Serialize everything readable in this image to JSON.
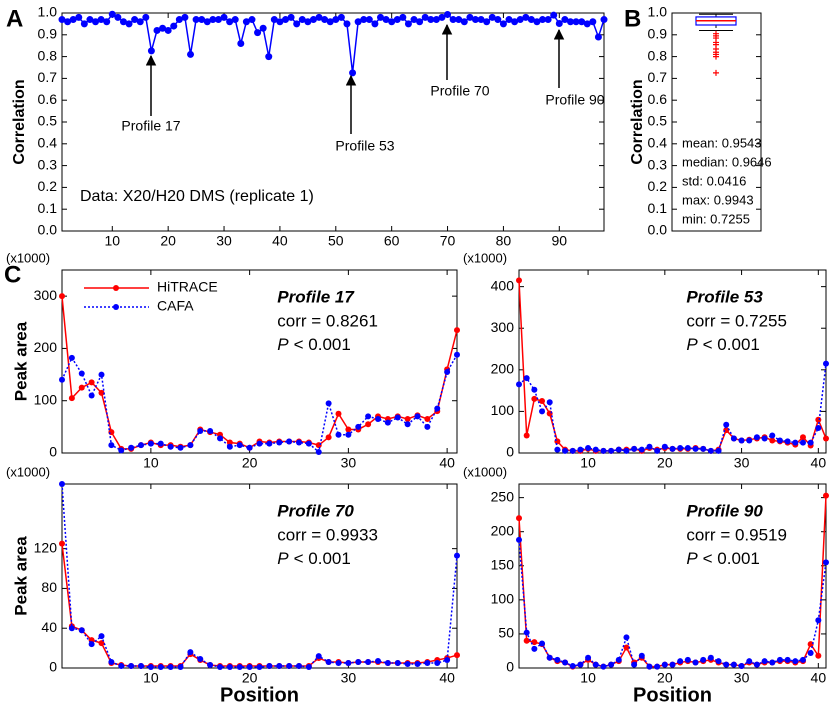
{
  "panel_labels": [
    "A",
    "B",
    "C"
  ],
  "chart_data": [
    {
      "type": "line",
      "y_label": "Correlation",
      "color": "#0000ff",
      "x": [
        1,
        2,
        3,
        4,
        5,
        6,
        7,
        8,
        9,
        10,
        11,
        12,
        13,
        14,
        15,
        16,
        17,
        18,
        19,
        20,
        21,
        22,
        23,
        24,
        25,
        26,
        27,
        28,
        29,
        30,
        31,
        32,
        33,
        34,
        35,
        36,
        37,
        38,
        39,
        40,
        41,
        42,
        43,
        44,
        45,
        46,
        47,
        48,
        49,
        50,
        51,
        52,
        53,
        54,
        55,
        56,
        57,
        58,
        59,
        60,
        61,
        62,
        63,
        64,
        65,
        66,
        67,
        68,
        69,
        70,
        71,
        72,
        73,
        74,
        75,
        76,
        77,
        78,
        79,
        80,
        81,
        82,
        83,
        84,
        85,
        86,
        87,
        88,
        89,
        90,
        91,
        92,
        93,
        94,
        95,
        96,
        97,
        98
      ],
      "values": [
        0.97,
        0.96,
        0.97,
        0.98,
        0.95,
        0.97,
        0.96,
        0.97,
        0.96,
        0.9943,
        0.98,
        0.96,
        0.95,
        0.97,
        0.96,
        0.98,
        0.8261,
        0.92,
        0.93,
        0.92,
        0.94,
        0.97,
        0.98,
        0.81,
        0.97,
        0.97,
        0.96,
        0.97,
        0.97,
        0.98,
        0.96,
        0.97,
        0.86,
        0.96,
        0.97,
        0.91,
        0.93,
        0.8,
        0.97,
        0.96,
        0.97,
        0.98,
        0.95,
        0.97,
        0.96,
        0.97,
        0.98,
        0.97,
        0.96,
        0.97,
        0.98,
        0.95,
        0.7255,
        0.96,
        0.97,
        0.97,
        0.95,
        0.98,
        0.97,
        0.96,
        0.97,
        0.98,
        0.95,
        0.97,
        0.96,
        0.98,
        0.97,
        0.97,
        0.98,
        0.9933,
        0.97,
        0.97,
        0.96,
        0.98,
        0.97,
        0.97,
        0.96,
        0.98,
        0.97,
        0.95,
        0.97,
        0.96,
        0.97,
        0.98,
        0.97,
        0.96,
        0.97,
        0.97,
        0.99,
        0.9519,
        0.97,
        0.96,
        0.96,
        0.96,
        0.95,
        0.96,
        0.89,
        0.97
      ],
      "xlim": [
        1,
        98
      ],
      "xticks": [
        10,
        20,
        30,
        40,
        50,
        60,
        70,
        80,
        90
      ],
      "ylim": [
        0,
        1
      ],
      "yticks": [
        {
          "value": 0,
          "label": "0.0"
        },
        0.1,
        0.2,
        0.3,
        0.4,
        0.5,
        0.6,
        0.7,
        0.8,
        0.9,
        {
          "value": 1,
          "label": "1.0"
        }
      ],
      "annotations": [
        "Profile 17",
        "Profile 53",
        "Profile 70",
        "Profile 90"
      ],
      "note": "Data: X20/H20 DMS (replicate 1)"
    },
    {
      "type": "box",
      "y_label": "Correlation",
      "ylim": [
        0,
        1
      ],
      "yticks": [
        {
          "value": 0,
          "label": "0.0"
        },
        0.1,
        0.2,
        0.3,
        0.4,
        0.5,
        0.6,
        0.7,
        0.8,
        0.9,
        {
          "value": 1,
          "label": "1.0"
        }
      ],
      "q1": 0.945,
      "median": 0.9646,
      "q3": 0.982,
      "whisker_low": 0.92,
      "whisker_high": 0.9943,
      "outliers": [
        0.905,
        0.895,
        0.885,
        0.865,
        0.855,
        0.835,
        0.82,
        0.81,
        0.8,
        0.7255
      ],
      "box_color": "#0000ff",
      "median_color": "#ff0000",
      "outlier_color": "#ff0000",
      "stats": [
        "mean: 0.9543",
        "median: 0.9646",
        "std: 0.0416",
        "max: 0.9943",
        "min: 0.7255"
      ]
    },
    {
      "type": "line",
      "title": "Profile 17",
      "corr_text": "corr = 0.8261",
      "p_symbol": "P",
      "p_text": "< 0.001",
      "unit_label": "(x1000)",
      "y_label": "Peak area",
      "legend": "upper left",
      "x": [
        1,
        2,
        3,
        4,
        5,
        6,
        7,
        8,
        9,
        10,
        11,
        12,
        13,
        14,
        15,
        16,
        17,
        18,
        19,
        20,
        21,
        22,
        23,
        24,
        25,
        26,
        27,
        28,
        29,
        30,
        31,
        32,
        33,
        34,
        35,
        36,
        37,
        38,
        39,
        40,
        41
      ],
      "xlim": [
        1,
        41
      ],
      "xticks": [
        10,
        20,
        30,
        40
      ],
      "ylim": [
        0,
        350
      ],
      "yticks": [
        0,
        100,
        200,
        300
      ],
      "series": [
        {
          "name": "HiTRACE",
          "color": "#ff0000",
          "dash": "solid",
          "values": [
            300,
            105,
            125,
            135,
            115,
            40,
            8,
            8,
            15,
            20,
            15,
            15,
            12,
            15,
            45,
            40,
            35,
            20,
            18,
            10,
            22,
            20,
            22,
            22,
            22,
            20,
            15,
            30,
            75,
            45,
            45,
            55,
            70,
            65,
            70,
            65,
            72,
            65,
            80,
            160,
            235
          ]
        },
        {
          "name": "CAFA",
          "color": "#0000ff",
          "dash": "dotted",
          "values": [
            140,
            182,
            152,
            110,
            150,
            15,
            5,
            10,
            15,
            18,
            18,
            12,
            10,
            15,
            42,
            42,
            28,
            12,
            15,
            10,
            18,
            18,
            20,
            22,
            20,
            18,
            2,
            95,
            35,
            35,
            50,
            70,
            65,
            58,
            68,
            55,
            70,
            50,
            85,
            155,
            188
          ]
        }
      ]
    },
    {
      "type": "line",
      "title": "Profile 53",
      "corr_text": "corr = 0.7255",
      "p_symbol": "P",
      "p_text": "< 0.001",
      "unit_label": "(x1000)",
      "x": [
        1,
        2,
        3,
        4,
        5,
        6,
        7,
        8,
        9,
        10,
        11,
        12,
        13,
        14,
        15,
        16,
        17,
        18,
        19,
        20,
        21,
        22,
        23,
        24,
        25,
        26,
        27,
        28,
        29,
        30,
        31,
        32,
        33,
        34,
        35,
        36,
        37,
        38,
        39,
        40,
        41
      ],
      "xlim": [
        1,
        41
      ],
      "xticks": [
        10,
        20,
        30,
        40
      ],
      "ylim": [
        0,
        440
      ],
      "yticks": [
        0,
        100,
        200,
        300,
        400
      ],
      "series": [
        {
          "color": "#ff0000",
          "dash": "solid",
          "values": [
            415,
            42,
            130,
            125,
            95,
            28,
            8,
            5,
            5,
            10,
            5,
            5,
            5,
            8,
            8,
            10,
            5,
            12,
            8,
            12,
            10,
            10,
            10,
            12,
            10,
            5,
            8,
            55,
            35,
            30,
            32,
            35,
            38,
            30,
            28,
            25,
            20,
            38,
            18,
            80,
            35
          ]
        },
        {
          "color": "#0000ff",
          "dash": "dotted",
          "values": [
            165,
            180,
            152,
            100,
            122,
            8,
            5,
            5,
            8,
            12,
            8,
            5,
            5,
            8,
            5,
            10,
            8,
            15,
            5,
            15,
            10,
            12,
            12,
            10,
            10,
            5,
            5,
            68,
            35,
            30,
            30,
            38,
            35,
            42,
            30,
            28,
            25,
            25,
            25,
            60,
            215
          ]
        }
      ]
    },
    {
      "type": "line",
      "title": "Profile 70",
      "corr_text": "corr = 0.9933",
      "p_symbol": "P",
      "p_text": "< 0.001",
      "unit_label": "(x1000)",
      "y_label": "Peak area",
      "x_label": "Position",
      "x": [
        1,
        2,
        3,
        4,
        5,
        6,
        7,
        8,
        9,
        10,
        11,
        12,
        13,
        14,
        15,
        16,
        17,
        18,
        19,
        20,
        21,
        22,
        23,
        24,
        25,
        26,
        27,
        28,
        29,
        30,
        31,
        32,
        33,
        34,
        35,
        36,
        37,
        38,
        39,
        40,
        41
      ],
      "xlim": [
        1,
        41
      ],
      "xticks": [
        10,
        20,
        30,
        40
      ],
      "ylim": [
        0,
        185
      ],
      "yticks": [
        0,
        40,
        80,
        120
      ],
      "series": [
        {
          "color": "#ff0000",
          "dash": "solid",
          "values": [
            125,
            42,
            38,
            28,
            25,
            5,
            3,
            2,
            2,
            2,
            2,
            2,
            2,
            14,
            8,
            3,
            2,
            2,
            2,
            2,
            2,
            2,
            2,
            2,
            2,
            2,
            10,
            6,
            6,
            5,
            6,
            6,
            6,
            5,
            5,
            5,
            5,
            6,
            8,
            10,
            13
          ]
        },
        {
          "color": "#0000ff",
          "dash": "dotted",
          "values": [
            185,
            40,
            38,
            24,
            32,
            6,
            2,
            2,
            2,
            1,
            1,
            1,
            1,
            16,
            9,
            3,
            1,
            1,
            1,
            1,
            1,
            2,
            2,
            2,
            2,
            1,
            12,
            6,
            5,
            5,
            6,
            6,
            7,
            5,
            5,
            4,
            4,
            5,
            5,
            8,
            113
          ]
        }
      ]
    },
    {
      "type": "line",
      "title": "Profile 90",
      "corr_text": "corr = 0.9519",
      "p_symbol": "P",
      "p_text": "< 0.001",
      "unit_label": "(x1000)",
      "x_label": "Position",
      "x": [
        1,
        2,
        3,
        4,
        5,
        6,
        7,
        8,
        9,
        10,
        11,
        12,
        13,
        14,
        15,
        16,
        17,
        18,
        19,
        20,
        21,
        22,
        23,
        24,
        25,
        26,
        27,
        28,
        29,
        30,
        31,
        32,
        33,
        34,
        35,
        36,
        37,
        38,
        39,
        40,
        41
      ],
      "xlim": [
        1,
        41
      ],
      "xticks": [
        10,
        20,
        30,
        40
      ],
      "ylim": [
        0,
        270
      ],
      "yticks": [
        0,
        50,
        100,
        150,
        200,
        250
      ],
      "series": [
        {
          "color": "#ff0000",
          "dash": "solid",
          "values": [
            220,
            40,
            38,
            35,
            15,
            10,
            8,
            2,
            5,
            12,
            5,
            2,
            5,
            10,
            30,
            8,
            15,
            2,
            2,
            5,
            5,
            8,
            10,
            8,
            10,
            12,
            8,
            5,
            5,
            3,
            8,
            5,
            8,
            8,
            10,
            10,
            8,
            10,
            35,
            18,
            253
          ]
        },
        {
          "color": "#0000ff",
          "dash": "dotted",
          "values": [
            188,
            52,
            28,
            36,
            15,
            12,
            8,
            3,
            5,
            15,
            5,
            2,
            5,
            12,
            45,
            5,
            18,
            2,
            2,
            5,
            5,
            10,
            12,
            8,
            12,
            15,
            10,
            5,
            5,
            3,
            10,
            5,
            10,
            8,
            12,
            12,
            10,
            12,
            22,
            70,
            155
          ]
        }
      ]
    }
  ]
}
